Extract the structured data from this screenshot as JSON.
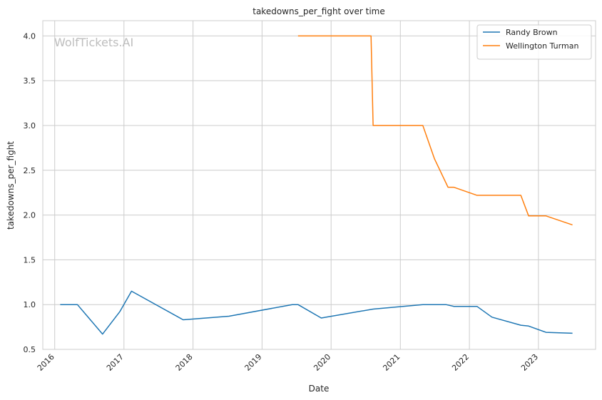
{
  "chart_data": {
    "type": "line",
    "title": "takedowns_per_fight over time",
    "xlabel": "Date",
    "ylabel": "takedowns_per_fight",
    "watermark": "WolfTickets.AI",
    "x_ticks": [
      "2016",
      "2017",
      "2018",
      "2019",
      "2020",
      "2021",
      "2022",
      "2023"
    ],
    "y_ticks": [
      "0.5",
      "1.0",
      "1.5",
      "2.0",
      "2.5",
      "3.0",
      "3.5",
      "4.0"
    ],
    "xlim": [
      "2015-10-30",
      "2023-10-30"
    ],
    "ylim": [
      0.5,
      4.17
    ],
    "grid": true,
    "legend_position": "top-right",
    "series": [
      {
        "name": "Randy Brown",
        "color": "#1f77b4",
        "points": [
          [
            "2016-01-30",
            1.0
          ],
          [
            "2016-04-30",
            1.0
          ],
          [
            "2016-09-10",
            0.67
          ],
          [
            "2016-12-10",
            0.92
          ],
          [
            "2017-02-10",
            1.15
          ],
          [
            "2017-11-10",
            0.83
          ],
          [
            "2018-07-10",
            0.87
          ],
          [
            "2019-06-10",
            1.0
          ],
          [
            "2019-07-10",
            1.0
          ],
          [
            "2019-11-10",
            0.85
          ],
          [
            "2020-08-10",
            0.95
          ],
          [
            "2021-04-30",
            1.0
          ],
          [
            "2021-08-30",
            1.0
          ],
          [
            "2021-10-10",
            0.98
          ],
          [
            "2022-02-10",
            0.98
          ],
          [
            "2022-04-30",
            0.86
          ],
          [
            "2022-09-30",
            0.77
          ],
          [
            "2022-11-10",
            0.76
          ],
          [
            "2023-02-10",
            0.69
          ],
          [
            "2023-06-30",
            0.68
          ]
        ]
      },
      {
        "name": "Wellington Turman",
        "color": "#ff7f0e",
        "points": [
          [
            "2019-07-10",
            4.0
          ],
          [
            "2020-07-30",
            4.0
          ],
          [
            "2020-08-10",
            3.0
          ],
          [
            "2021-04-30",
            3.0
          ],
          [
            "2021-06-30",
            2.63
          ],
          [
            "2021-09-10",
            2.31
          ],
          [
            "2021-10-10",
            2.31
          ],
          [
            "2022-02-10",
            2.22
          ],
          [
            "2022-09-30",
            2.22
          ],
          [
            "2022-11-10",
            1.99
          ],
          [
            "2023-02-10",
            1.99
          ],
          [
            "2023-06-30",
            1.89
          ]
        ]
      }
    ]
  }
}
